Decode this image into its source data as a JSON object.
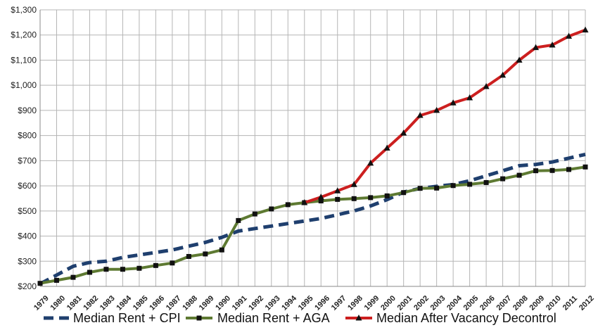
{
  "chart_data": {
    "type": "line",
    "title": "",
    "xlabel": "",
    "ylabel": "",
    "ylim": [
      200,
      1300
    ],
    "y_ticks": [
      "$200",
      "$300",
      "$400",
      "$500",
      "$600",
      "$700",
      "$800",
      "$900",
      "$1,000",
      "$1,100",
      "$1,200",
      "$1,300"
    ],
    "y_tick_values": [
      200,
      300,
      400,
      500,
      600,
      700,
      800,
      900,
      1000,
      1100,
      1200,
      1300
    ],
    "x": [
      "1979",
      "1980",
      "1981",
      "1982",
      "1983",
      "1984",
      "1985",
      "1986",
      "1987",
      "1988",
      "1989",
      "1990",
      "1991",
      "1992",
      "1993",
      "1994",
      "1995",
      "1996",
      "1997",
      "1998",
      "1999",
      "2000",
      "2001",
      "2002",
      "2003",
      "2004",
      "2005",
      "2006",
      "2007",
      "2008",
      "2009",
      "2010",
      "2011",
      "2012"
    ],
    "grid": true,
    "legend_position": "bottom",
    "series": [
      {
        "name": "Median Rent + CPI",
        "color": "#1f3f6e",
        "style": "dashed",
        "marker": "none",
        "values": [
          210,
          245,
          280,
          295,
          300,
          315,
          325,
          335,
          345,
          360,
          375,
          395,
          420,
          430,
          440,
          450,
          460,
          470,
          485,
          500,
          520,
          545,
          575,
          590,
          598,
          605,
          620,
          640,
          660,
          680,
          685,
          695,
          710,
          725
        ]
      },
      {
        "name": "Median Rent + AGA",
        "color": "#5e7a32",
        "style": "solid",
        "marker": "square",
        "values": [
          212,
          224,
          236,
          256,
          268,
          268,
          272,
          283,
          293,
          319,
          329,
          345,
          462,
          488,
          508,
          525,
          533,
          540,
          546,
          549,
          553,
          560,
          573,
          590,
          591,
          601,
          606,
          613,
          628,
          642,
          660,
          661,
          665,
          675
        ]
      },
      {
        "name": "Median After Vacancy Decontrol",
        "color": "#cc1f1f",
        "style": "solid",
        "marker": "triangle",
        "start_index": 16,
        "values": [
          null,
          null,
          null,
          null,
          null,
          null,
          null,
          null,
          null,
          null,
          null,
          null,
          null,
          null,
          null,
          null,
          533,
          555,
          580,
          605,
          690,
          750,
          810,
          880,
          900,
          930,
          950,
          995,
          1040,
          1100,
          1150,
          1160,
          1195,
          1220
        ]
      }
    ]
  }
}
